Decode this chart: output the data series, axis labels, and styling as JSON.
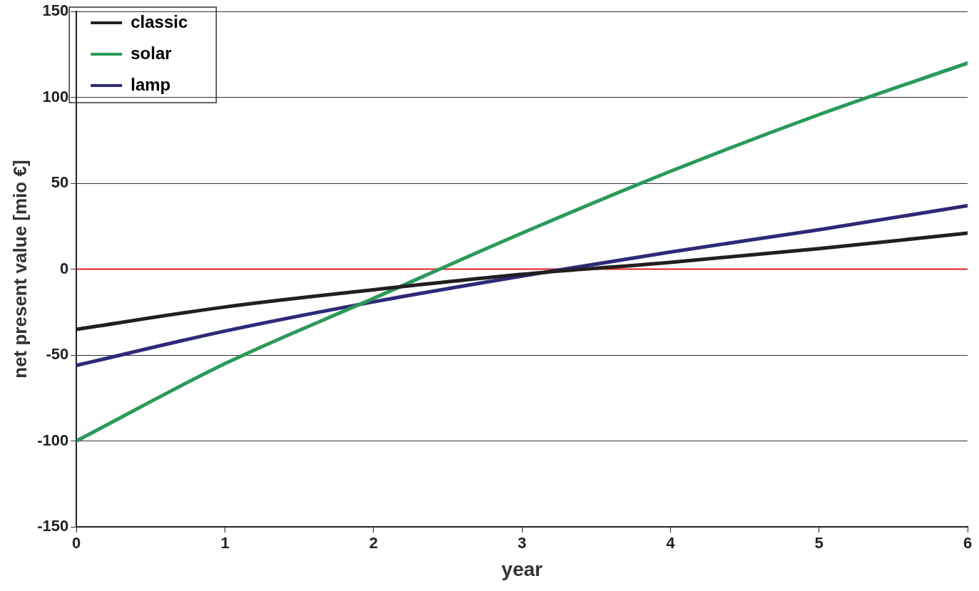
{
  "chart_data": {
    "type": "line",
    "xlabel": "year",
    "ylabel": "net present value [mio €]",
    "x": [
      0,
      1,
      2,
      3,
      4,
      5,
      6
    ],
    "series": [
      {
        "name": "classic",
        "color": "#231f20",
        "values": [
          -35,
          -22,
          -12,
          -3,
          4,
          12,
          21
        ]
      },
      {
        "name": "solar",
        "color": "#2a9a5a",
        "values": [
          -100,
          -55,
          -17,
          21,
          57,
          90,
          120
        ]
      },
      {
        "name": "lamp",
        "color": "#2e2a78",
        "values": [
          -56,
          -36,
          -19,
          -4,
          10,
          23,
          37
        ]
      }
    ],
    "ref_lines": [
      {
        "axis": "y",
        "value": 0,
        "color": "#e02020"
      }
    ],
    "xlim": [
      0,
      6
    ],
    "xticks": [
      0,
      1,
      2,
      3,
      4,
      5,
      6
    ],
    "ylim": [
      -150,
      150
    ],
    "yticks": [
      -150,
      -100,
      -50,
      0,
      50,
      100,
      150
    ],
    "grid": "y",
    "legend": "top left",
    "marker": "none",
    "line_style": "solid"
  }
}
